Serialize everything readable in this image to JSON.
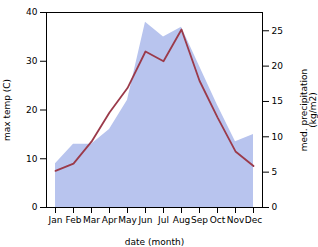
{
  "chart_data": {
    "type": "line",
    "categories": [
      "Jan",
      "Feb",
      "Mar",
      "Apr",
      "May",
      "Jun",
      "Jul",
      "Aug",
      "Sep",
      "Oct",
      "Nov",
      "Dec"
    ],
    "series": [
      {
        "type": "area",
        "color": "#b8c4ee",
        "values": [
          9.0,
          13.0,
          13.0,
          16.0,
          22.0,
          38.0,
          35.0,
          37.0,
          29.0,
          21.0,
          13.5,
          15.0
        ]
      },
      {
        "type": "line",
        "color": "#9b3a4a",
        "values": [
          7.5,
          9.0,
          13.5,
          19.5,
          24.5,
          32.0,
          30.0,
          36.5,
          26.0,
          18.5,
          11.5,
          8.5
        ]
      }
    ],
    "xlabel": "date (month)",
    "ylabel": "max temp (C)",
    "y2label": "med. precipitation\n(kg/m2)",
    "ylim": [
      0,
      40
    ],
    "yticks": [
      0,
      10,
      20,
      30,
      40
    ],
    "y2lim": [
      0,
      27.586
    ],
    "y2ticks": [
      0,
      5,
      10,
      15,
      20,
      25
    ],
    "grid": false
  }
}
